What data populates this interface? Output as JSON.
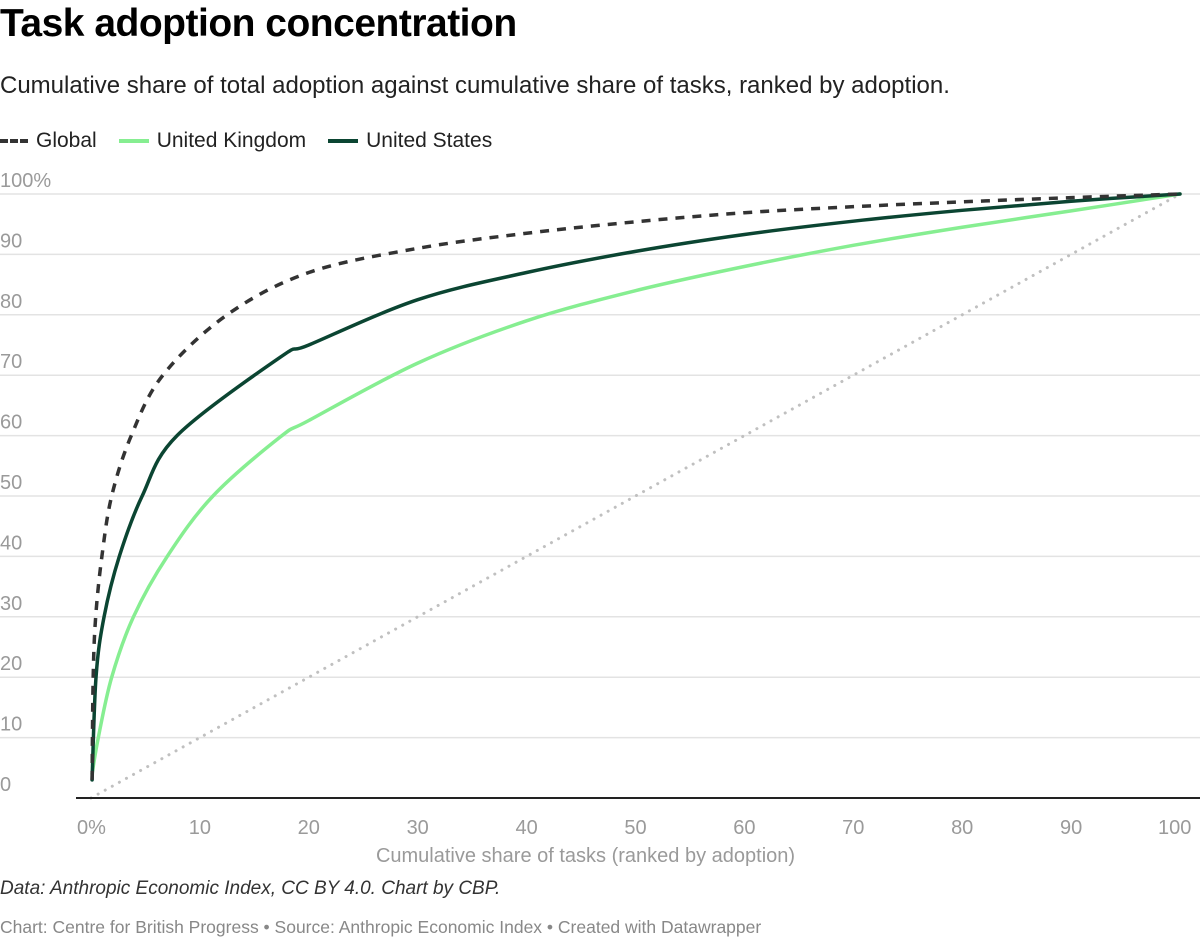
{
  "title": "Task adoption concentration",
  "subtitle": "Cumulative share of total adoption against cumulative share of tasks, ranked by adoption.",
  "note": "Data: Anthropic Economic Index, CC BY 4.0. Chart by CBP.",
  "footer": "Chart: Centre for British Progress • Source: Anthropic Economic Index • Created with Datawrapper",
  "chart_data": {
    "type": "line",
    "title": "Task adoption concentration",
    "xlabel": "Cumulative share of tasks (ranked by adoption)",
    "ylabel": "",
    "xlim": [
      0,
      100
    ],
    "ylim": [
      0,
      100
    ],
    "grid": true,
    "legend_placement": "top-left",
    "x_ticks": [
      "0%",
      "10",
      "20",
      "30",
      "40",
      "50",
      "60",
      "70",
      "80",
      "90",
      "100"
    ],
    "y_ticks": [
      "0",
      "10",
      "20",
      "30",
      "40",
      "50",
      "60",
      "70",
      "80",
      "90",
      "100%"
    ],
    "reference_line": {
      "x": [
        0,
        100
      ],
      "y": [
        0,
        100
      ],
      "color": "#c0c0c0",
      "style": "dotted"
    },
    "series": [
      {
        "name": "Global",
        "color": "#333333",
        "style": "dashed",
        "x": [
          0.1,
          0.2,
          0.43,
          1,
          1.9,
          3.7,
          6.6,
          12.5,
          20,
          30,
          40,
          50,
          60,
          70,
          80,
          90,
          100
        ],
        "y": [
          3,
          20,
          30,
          40,
          50,
          60,
          70,
          80,
          87,
          91,
          93.5,
          95.4,
          96.9,
          97.9,
          98.7,
          99.4,
          100
        ]
      },
      {
        "name": "United Kingdom",
        "color": "#86ee91",
        "style": "solid",
        "x": [
          0.1,
          0.67,
          1.9,
          3.9,
          7,
          11.2,
          17.4,
          20,
          30,
          40,
          50,
          60,
          70,
          80,
          90,
          100
        ],
        "y": [
          4,
          10,
          20,
          30,
          40,
          50,
          59.8,
          62.5,
          72,
          79,
          84,
          88,
          91.5,
          94.5,
          97.2,
          100
        ]
      },
      {
        "name": "United States",
        "color": "#0b4532",
        "style": "solid",
        "x": [
          0.1,
          0.46,
          1.2,
          2.6,
          4.7,
          7.9,
          17.4,
          20,
          30,
          40,
          50,
          60,
          70,
          80,
          90,
          100
        ],
        "y": [
          3,
          20,
          30,
          40,
          50,
          60,
          73,
          75,
          82.5,
          87,
          90.5,
          93.3,
          95.5,
          97.3,
          98.8,
          100
        ]
      }
    ]
  }
}
